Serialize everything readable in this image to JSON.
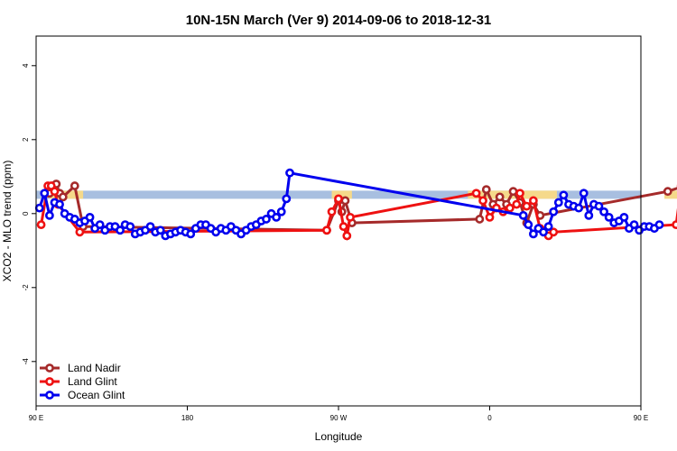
{
  "chart_data": {
    "type": "line",
    "title": "10N-15N March (Ver 9)   2014-09-06 to 2018-12-31",
    "xlabel": "Longitude",
    "ylabel": "XCO2 - MLO trend (ppm)",
    "xlim": [
      90,
      450
    ],
    "ylim": [
      -5.2,
      4.8
    ],
    "x_ticks": [
      {
        "value": 90,
        "label": "90 E"
      },
      {
        "value": 180,
        "label": "180"
      },
      {
        "value": 270,
        "label": "90 W"
      },
      {
        "value": 360,
        "label": "0"
      },
      {
        "value": 450,
        "label": "90 E"
      },
      {
        "value": 540,
        "label": "180"
      }
    ],
    "y_ticks": [
      {
        "value": 4,
        "label": "4"
      },
      {
        "value": 2,
        "label": "2"
      },
      {
        "value": 0,
        "label": "0"
      },
      {
        "value": -2,
        "label": "-2"
      },
      {
        "value": -4,
        "label": "-4"
      }
    ],
    "grid": false,
    "legend_position": "bottom-left",
    "land_band": {
      "y_range": [
        0.4,
        0.62
      ],
      "color": "#a8bfe0",
      "land_color": "#f5d98a",
      "land_segments": [
        [
          98,
          118
        ],
        [
          266,
          278
        ],
        [
          347,
          400
        ],
        [
          464,
          487
        ]
      ]
    },
    "series": [
      {
        "name": "Land Nadir",
        "color": "#a52a2a",
        "points": [
          [
            98,
            0.55
          ],
          [
            100,
            0.75
          ],
          [
            102,
            0.8
          ],
          [
            104,
            0.55
          ],
          [
            106,
            0.45
          ],
          [
            113,
            0.75
          ],
          [
            118,
            -0.35
          ],
          [
            263,
            -0.45
          ],
          [
            270,
            0.35
          ],
          [
            272,
            0.05
          ],
          [
            274,
            0.35
          ],
          [
            278,
            -0.25
          ],
          [
            354,
            -0.15
          ],
          [
            358,
            0.65
          ],
          [
            362,
            0.25
          ],
          [
            366,
            0.45
          ],
          [
            370,
            0.25
          ],
          [
            374,
            0.6
          ],
          [
            378,
            0.3
          ],
          [
            382,
            -0.25
          ],
          [
            386,
            0.25
          ],
          [
            390,
            -0.05
          ],
          [
            466,
            0.6
          ],
          [
            476,
            0.75
          ],
          [
            478,
            0.35
          ],
          [
            491,
            0.75
          ],
          [
            493,
            -0.5
          ]
        ]
      },
      {
        "name": "Land Glint",
        "color": "#ee1111",
        "points": [
          [
            93,
            -0.3
          ],
          [
            97,
            0.75
          ],
          [
            99,
            0.75
          ],
          [
            101,
            0.6
          ],
          [
            103,
            0.25
          ],
          [
            116,
            -0.5
          ],
          [
            263,
            -0.45
          ],
          [
            266,
            0.05
          ],
          [
            270,
            0.4
          ],
          [
            273,
            -0.35
          ],
          [
            275,
            -0.6
          ],
          [
            277,
            -0.1
          ],
          [
            352,
            0.55
          ],
          [
            356,
            0.35
          ],
          [
            360,
            -0.1
          ],
          [
            364,
            0.15
          ],
          [
            368,
            0.05
          ],
          [
            372,
            0.15
          ],
          [
            376,
            0.25
          ],
          [
            378,
            0.55
          ],
          [
            382,
            0.2
          ],
          [
            386,
            0.35
          ],
          [
            390,
            -0.4
          ],
          [
            395,
            -0.6
          ],
          [
            398,
            -0.5
          ],
          [
            471,
            -0.3
          ],
          [
            474,
            0.75
          ],
          [
            477,
            0.8
          ],
          [
            479,
            0.6
          ],
          [
            492,
            -0.45
          ]
        ]
      },
      {
        "name": "Ocean Glint",
        "color": "#0000ee",
        "points": [
          [
            92,
            0.15
          ],
          [
            95,
            0.55
          ],
          [
            98,
            -0.05
          ],
          [
            101,
            0.3
          ],
          [
            104,
            0.25
          ],
          [
            107,
            0.0
          ],
          [
            110,
            -0.1
          ],
          [
            113,
            -0.15
          ],
          [
            116,
            -0.25
          ],
          [
            119,
            -0.2
          ],
          [
            122,
            -0.1
          ],
          [
            125,
            -0.4
          ],
          [
            128,
            -0.3
          ],
          [
            131,
            -0.45
          ],
          [
            134,
            -0.35
          ],
          [
            137,
            -0.35
          ],
          [
            140,
            -0.45
          ],
          [
            143,
            -0.3
          ],
          [
            146,
            -0.35
          ],
          [
            149,
            -0.55
          ],
          [
            152,
            -0.5
          ],
          [
            155,
            -0.45
          ],
          [
            158,
            -0.35
          ],
          [
            161,
            -0.5
          ],
          [
            164,
            -0.45
          ],
          [
            167,
            -0.6
          ],
          [
            170,
            -0.55
          ],
          [
            173,
            -0.5
          ],
          [
            176,
            -0.45
          ],
          [
            179,
            -0.5
          ],
          [
            182,
            -0.55
          ],
          [
            185,
            -0.4
          ],
          [
            188,
            -0.3
          ],
          [
            191,
            -0.3
          ],
          [
            194,
            -0.4
          ],
          [
            197,
            -0.5
          ],
          [
            200,
            -0.4
          ],
          [
            203,
            -0.45
          ],
          [
            206,
            -0.35
          ],
          [
            209,
            -0.45
          ],
          [
            212,
            -0.55
          ],
          [
            215,
            -0.45
          ],
          [
            218,
            -0.35
          ],
          [
            221,
            -0.3
          ],
          [
            224,
            -0.2
          ],
          [
            227,
            -0.15
          ],
          [
            230,
            0.0
          ],
          [
            233,
            -0.1
          ],
          [
            236,
            0.05
          ],
          [
            239,
            0.4
          ],
          [
            241,
            1.1
          ],
          [
            380,
            -0.05
          ],
          [
            383,
            -0.3
          ],
          [
            386,
            -0.55
          ],
          [
            389,
            -0.4
          ],
          [
            392,
            -0.5
          ],
          [
            395,
            -0.35
          ],
          [
            398,
            0.05
          ],
          [
            401,
            0.3
          ],
          [
            404,
            0.5
          ],
          [
            407,
            0.25
          ],
          [
            410,
            0.2
          ],
          [
            413,
            0.15
          ],
          [
            416,
            0.55
          ],
          [
            419,
            -0.05
          ],
          [
            422,
            0.25
          ],
          [
            425,
            0.2
          ],
          [
            428,
            0.05
          ],
          [
            431,
            -0.1
          ],
          [
            434,
            -0.25
          ],
          [
            437,
            -0.2
          ],
          [
            440,
            -0.1
          ],
          [
            443,
            -0.4
          ],
          [
            446,
            -0.3
          ],
          [
            449,
            -0.45
          ],
          [
            452,
            -0.35
          ],
          [
            455,
            -0.35
          ],
          [
            458,
            -0.4
          ],
          [
            461,
            -0.3
          ]
        ]
      }
    ]
  }
}
